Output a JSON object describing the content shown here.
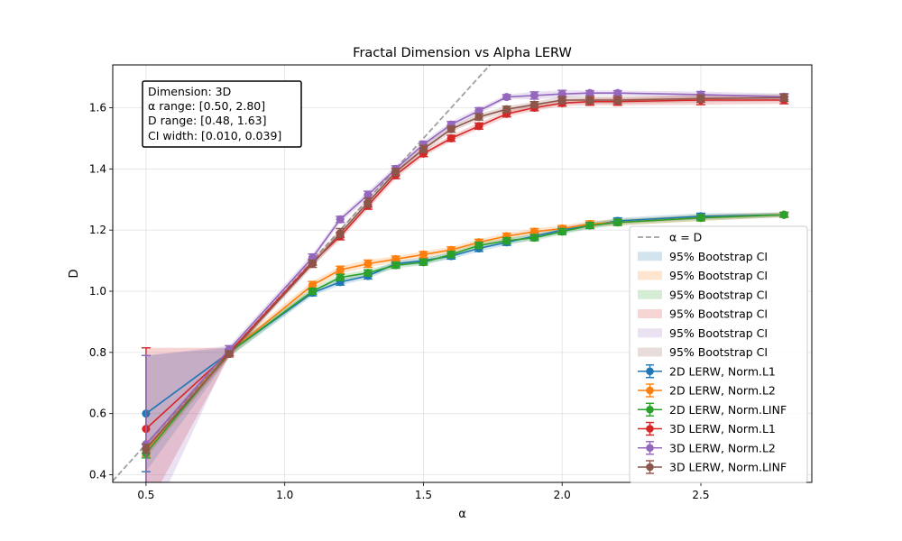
{
  "chart_data": {
    "type": "line",
    "title": "Fractal Dimension vs Alpha LERW",
    "xlabel": "α",
    "ylabel": "D",
    "xlim": [
      0.38,
      2.9
    ],
    "ylim": [
      0.375,
      1.74
    ],
    "xticks": [
      "0.5",
      "1.0",
      "1.5",
      "2.0",
      "2.5"
    ],
    "yticks": [
      "0.4",
      "0.6",
      "0.8",
      "1.0",
      "1.2",
      "1.4",
      "1.6"
    ],
    "grid": true,
    "legend_position": "lower-right",
    "info_box": {
      "lines": [
        "Dimension: 3D",
        "α range: [0.50, 2.80]",
        "D range: [0.48, 1.63]",
        "CI width: [0.010, 0.039]"
      ]
    },
    "reference_line": {
      "name": "α = D",
      "color": "#a0a0a0"
    },
    "ci_label": "95% Bootstrap CI",
    "x": [
      0.5,
      0.8,
      1.1,
      1.2,
      1.3,
      1.4,
      1.5,
      1.6,
      1.7,
      1.8,
      1.9,
      2.0,
      2.1,
      2.2,
      2.5,
      2.8
    ],
    "series": [
      {
        "name": "2D LERW, Norm.L1",
        "color": "#1f77b4",
        "values": [
          0.6,
          0.8,
          0.995,
          1.03,
          1.05,
          1.09,
          1.1,
          1.115,
          1.14,
          1.16,
          1.18,
          1.2,
          1.215,
          1.23,
          1.245,
          1.25
        ],
        "err": [
          0.19,
          0.01,
          0.01,
          0.01,
          0.01,
          0.01,
          0.01,
          0.01,
          0.01,
          0.01,
          0.01,
          0.01,
          0.01,
          0.01,
          0.01,
          0.008
        ]
      },
      {
        "name": "2D LERW, Norm.L2",
        "color": "#ff7f0e",
        "values": [
          0.48,
          0.8,
          1.02,
          1.07,
          1.09,
          1.105,
          1.12,
          1.135,
          1.16,
          1.18,
          1.195,
          1.205,
          1.22,
          1.225,
          1.24,
          1.25
        ],
        "err": [
          0.02,
          0.01,
          0.012,
          0.012,
          0.012,
          0.01,
          0.01,
          0.01,
          0.01,
          0.01,
          0.01,
          0.01,
          0.01,
          0.01,
          0.01,
          0.008
        ]
      },
      {
        "name": "2D LERW, Norm.LINF",
        "color": "#2ca02c",
        "values": [
          0.47,
          0.8,
          1.0,
          1.045,
          1.06,
          1.085,
          1.095,
          1.12,
          1.15,
          1.165,
          1.175,
          1.195,
          1.215,
          1.225,
          1.24,
          1.25
        ],
        "err": [
          0.015,
          0.01,
          0.01,
          0.01,
          0.01,
          0.01,
          0.01,
          0.01,
          0.01,
          0.01,
          0.01,
          0.01,
          0.01,
          0.01,
          0.01,
          0.008
        ]
      },
      {
        "name": "3D LERW, Norm.L1",
        "color": "#d62728",
        "values": [
          0.55,
          0.8,
          1.095,
          1.18,
          1.28,
          1.38,
          1.45,
          1.5,
          1.54,
          1.58,
          1.6,
          1.615,
          1.62,
          1.62,
          1.625,
          1.625
        ],
        "err": [
          0.265,
          0.01,
          0.01,
          0.012,
          0.012,
          0.012,
          0.01,
          0.01,
          0.01,
          0.01,
          0.01,
          0.01,
          0.012,
          0.012,
          0.015,
          0.012
        ]
      },
      {
        "name": "3D LERW, Norm.L2",
        "color": "#9467bd",
        "values": [
          0.5,
          0.81,
          1.11,
          1.235,
          1.315,
          1.4,
          1.48,
          1.545,
          1.59,
          1.635,
          1.64,
          1.645,
          1.648,
          1.648,
          1.643,
          1.636
        ],
        "err": [
          0.29,
          0.012,
          0.012,
          0.01,
          0.012,
          0.01,
          0.01,
          0.01,
          0.01,
          0.008,
          0.012,
          0.012,
          0.008,
          0.008,
          0.01,
          0.01
        ]
      },
      {
        "name": "3D LERW, Norm.LINF",
        "color": "#8c564b",
        "values": [
          0.485,
          0.795,
          1.09,
          1.19,
          1.29,
          1.39,
          1.465,
          1.53,
          1.57,
          1.595,
          1.61,
          1.625,
          1.625,
          1.625,
          1.63,
          1.633
        ],
        "err": [
          0.015,
          0.01,
          0.012,
          0.015,
          0.015,
          0.012,
          0.012,
          0.01,
          0.01,
          0.01,
          0.01,
          0.012,
          0.012,
          0.012,
          0.012,
          0.012
        ]
      }
    ],
    "ci_bands": [
      {
        "color": "#1f77b4",
        "lower": [
          0.41,
          0.785,
          0.985,
          1.02,
          1.04,
          1.08,
          1.09,
          1.105,
          1.13,
          1.15,
          1.17,
          1.19,
          1.205,
          1.22,
          1.235,
          1.242
        ],
        "upper": [
          0.79,
          0.815,
          1.005,
          1.04,
          1.06,
          1.1,
          1.11,
          1.125,
          1.15,
          1.17,
          1.19,
          1.21,
          1.225,
          1.24,
          1.255,
          1.258
        ]
      },
      {
        "color": "#ff7f0e",
        "lower": [
          0.46,
          0.785,
          1.008,
          1.058,
          1.078,
          1.095,
          1.11,
          1.125,
          1.15,
          1.17,
          1.185,
          1.195,
          1.21,
          1.215,
          1.23,
          1.242
        ],
        "upper": [
          0.5,
          0.815,
          1.032,
          1.082,
          1.102,
          1.115,
          1.13,
          1.145,
          1.17,
          1.19,
          1.205,
          1.215,
          1.23,
          1.235,
          1.25,
          1.258
        ]
      },
      {
        "color": "#2ca02c",
        "lower": [
          0.455,
          0.785,
          0.99,
          1.035,
          1.05,
          1.075,
          1.085,
          1.11,
          1.14,
          1.155,
          1.165,
          1.185,
          1.205,
          1.215,
          1.23,
          1.242
        ],
        "upper": [
          0.485,
          0.815,
          1.01,
          1.055,
          1.07,
          1.095,
          1.105,
          1.13,
          1.16,
          1.175,
          1.185,
          1.205,
          1.225,
          1.235,
          1.25,
          1.258
        ]
      },
      {
        "color": "#d62728",
        "lower": [
          0.285,
          0.785,
          1.085,
          1.168,
          1.268,
          1.368,
          1.44,
          1.49,
          1.53,
          1.57,
          1.59,
          1.605,
          1.608,
          1.608,
          1.61,
          1.613
        ],
        "upper": [
          0.815,
          0.815,
          1.105,
          1.192,
          1.292,
          1.392,
          1.46,
          1.51,
          1.55,
          1.59,
          1.61,
          1.625,
          1.632,
          1.632,
          1.64,
          1.637
        ]
      },
      {
        "color": "#9467bd",
        "lower": [
          0.21,
          0.798,
          1.098,
          1.225,
          1.303,
          1.39,
          1.47,
          1.535,
          1.58,
          1.627,
          1.628,
          1.633,
          1.64,
          1.64,
          1.633,
          1.626
        ],
        "upper": [
          0.79,
          0.822,
          1.122,
          1.245,
          1.327,
          1.41,
          1.49,
          1.555,
          1.6,
          1.643,
          1.652,
          1.657,
          1.656,
          1.656,
          1.653,
          1.646
        ]
      },
      {
        "color": "#8c564b",
        "lower": [
          0.47,
          0.785,
          1.078,
          1.175,
          1.275,
          1.378,
          1.453,
          1.52,
          1.56,
          1.585,
          1.6,
          1.613,
          1.613,
          1.613,
          1.618,
          1.621
        ],
        "upper": [
          0.5,
          0.805,
          1.102,
          1.205,
          1.305,
          1.402,
          1.477,
          1.54,
          1.58,
          1.605,
          1.62,
          1.637,
          1.637,
          1.637,
          1.642,
          1.645
        ]
      }
    ]
  }
}
